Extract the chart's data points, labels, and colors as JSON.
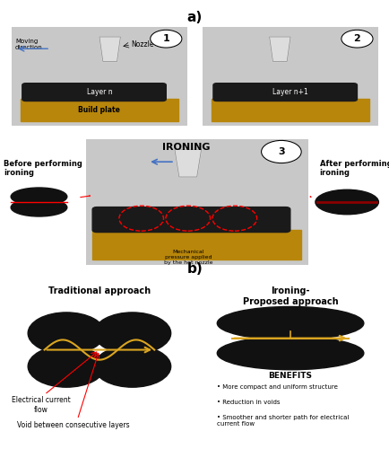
{
  "title_a": "a)",
  "title_b": "b)",
  "panel1_label": "1",
  "panel2_label": "2",
  "panel3_label": "3",
  "moving_direction": "Moving\ndirection",
  "nozzle_label": "Nozzle",
  "layer_n": "Layer n",
  "layer_n1": "Layer n+1",
  "build_plate": "Build plate",
  "ironing_label": "IRONING",
  "before_ironing": "Before performing\nironing",
  "after_ironing": "After performing\nironing",
  "mech_pressure": "Mechanical\npressure applied\nby the hot nozzle",
  "trad_title": "Traditional approach",
  "iron_title": "Ironing-\nProposed approach",
  "benefits_title": "BENEFITS",
  "benefit1": "More compact and uniform structure",
  "benefit2": "Reduction in voids",
  "benefit3": "Smoother and shorter path for electrical\ncurrent flow",
  "elec_label": "Electrical current\nflow",
  "void_label": "Void between consecutive layers",
  "bg_gray": "#c8c8c8",
  "bg_gold": "#b8860b",
  "bg_white": "#ffffff",
  "black": "#111111",
  "dark_gray": "#333333",
  "red": "#cc0000",
  "gold": "#DAA520",
  "blue_arrow": "#4472c4"
}
